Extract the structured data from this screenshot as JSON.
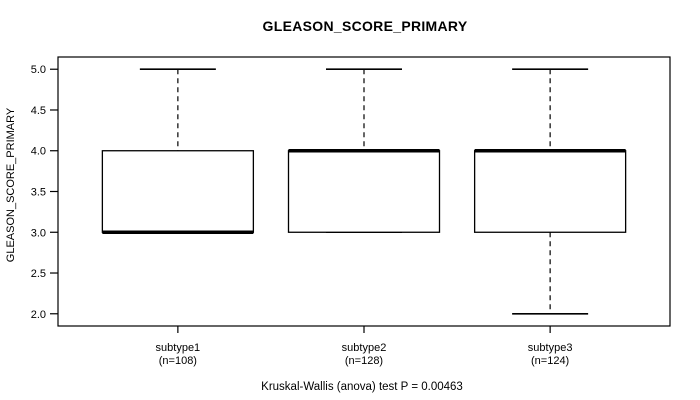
{
  "title": "GLEASON_SCORE_PRIMARY",
  "caption": "Kruskal-Wallis (anova) test P = 0.00463",
  "colors": {
    "line": "#000000",
    "background": "#ffffff",
    "box_fill": "#ffffff"
  },
  "chart_data": {
    "type": "boxplot",
    "title": "GLEASON_SCORE_PRIMARY",
    "xlabel": "",
    "ylabel": "GLEASON_SCORE_PRIMARY",
    "ylim": [
      1.85,
      5.15
    ],
    "yticks": [
      2.0,
      2.5,
      3.0,
      3.5,
      4.0,
      4.5,
      5.0
    ],
    "ytick_labels": [
      "2.0",
      "2.5",
      "3.0",
      "3.5",
      "4.0",
      "4.5",
      "5.0"
    ],
    "grid": false,
    "legend": "none",
    "groups": [
      {
        "label": "subtype1",
        "sublabel": "(n=108)",
        "n": 108,
        "whisker_low": 3.0,
        "q1": 3.0,
        "median": 3.0,
        "q3": 4.0,
        "whisker_high": 5.0,
        "outliers": []
      },
      {
        "label": "subtype2",
        "sublabel": "(n=128)",
        "n": 128,
        "whisker_low": 3.0,
        "q1": 3.0,
        "median": 4.0,
        "q3": 4.0,
        "whisker_high": 5.0,
        "outliers": []
      },
      {
        "label": "subtype3",
        "sublabel": "(n=124)",
        "n": 124,
        "whisker_low": 2.0,
        "q1": 3.0,
        "median": 4.0,
        "q3": 4.0,
        "whisker_high": 5.0,
        "outliers": []
      }
    ],
    "annotation": "Kruskal-Wallis (anova) test P = 0.00463"
  }
}
